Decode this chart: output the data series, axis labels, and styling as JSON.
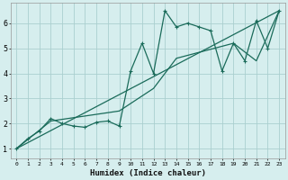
{
  "xlabel": "Humidex (Indice chaleur)",
  "bg_color": "#d6eeee",
  "grid_color": "#aacfcf",
  "line_color": "#1a6b5a",
  "xlim": [
    -0.5,
    23.5
  ],
  "ylim": [
    0.6,
    6.8
  ],
  "xticks": [
    0,
    1,
    2,
    3,
    4,
    5,
    6,
    7,
    8,
    9,
    10,
    11,
    12,
    13,
    14,
    15,
    16,
    17,
    18,
    19,
    20,
    21,
    22,
    23
  ],
  "yticks": [
    1,
    2,
    3,
    4,
    5,
    6
  ],
  "main_x": [
    0,
    1,
    2,
    3,
    4,
    5,
    6,
    7,
    8,
    9,
    10,
    11,
    12,
    13,
    14,
    15,
    16,
    17,
    18,
    19,
    20,
    21,
    22,
    23
  ],
  "main_y": [
    1.0,
    1.4,
    1.7,
    2.2,
    2.0,
    1.9,
    1.85,
    2.05,
    2.1,
    1.9,
    4.1,
    5.2,
    4.0,
    6.5,
    5.85,
    6.0,
    5.85,
    5.7,
    4.1,
    5.2,
    4.5,
    6.1,
    5.0,
    6.5
  ],
  "line1_x": [
    0,
    23
  ],
  "line1_y": [
    1.0,
    6.5
  ],
  "line2_x": [
    0,
    3,
    9,
    12,
    14,
    19,
    21,
    23
  ],
  "line2_y": [
    1.0,
    2.1,
    2.5,
    3.4,
    4.6,
    5.2,
    4.5,
    6.5
  ]
}
